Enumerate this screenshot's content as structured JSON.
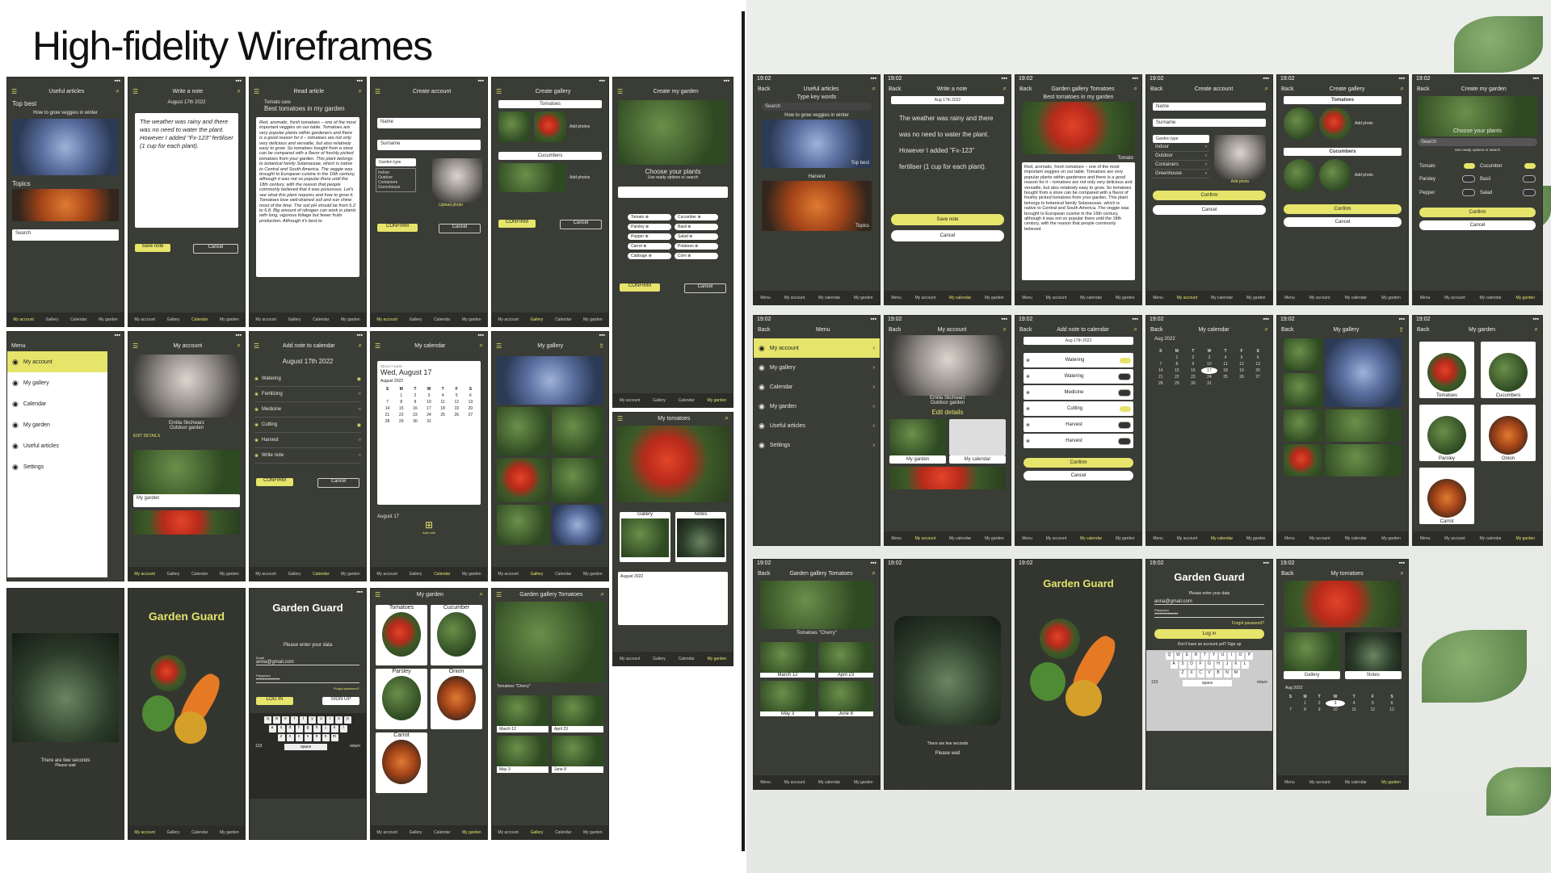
{
  "title": "High-fidelity Wireframes",
  "time": "19:02",
  "back": "Back",
  "nav": {
    "my_account": "My account",
    "gallery": "Gallery",
    "calendar": "Calendar",
    "my_garden": "My garden",
    "menu": "Menu",
    "my_calendar": "My calendar"
  },
  "left": {
    "useful_articles": "Useful articles",
    "top_best": "Top best",
    "how_to": "How to grow veggies in winter",
    "topics": "Topics",
    "search": "Search",
    "write_note": "Write a note",
    "note_date": "August 17th 2022",
    "note_text": "The weather was rainy and there was no need to water the plant. However I added \"Fx-123\" fertiliser (1 cup for each plant).",
    "save_note": "Save note",
    "cancel": "Cancel",
    "read_article": "Read article",
    "tomato_care": "Tomato care",
    "best_tomatoes": "Best tomatoes in my garden",
    "article_text": "Red, aromatic, fresh tomatoes – one of the most important veggies on our table. Tomatoes are very popular plants within gardeners and there is a good reason for it – tomatoes are not only very delicious and versatile, but also relatively easy to grow. So tomatoes bought from a store can be compared with a flavor of freshly picked tomatoes from your garden. This plant belongs to botanical family Solanaceae, which is native to Central and South America. The veggie was brought to European cuisine in the 16th century, although it was not so popular there until the 18th century, with the reason that people commonly believed that it was poisonous. Let's see what this plant requires and how to grow it. Tomatoes love well-drained soil and sun shine most of the time. The soil pH should be from 6.2 to 6.8. Big amount of nitrogen can work in plants with long, vigorous foliage but fewer fruits production. Although it's best to",
    "create_account": "Create account",
    "name": "Name",
    "surname": "Surname",
    "garden_type": "Garden type",
    "indoor": "Indoor",
    "outdoor": "Outdoor",
    "containers": "Containers",
    "greenhouse": "Greenhouse",
    "upload_photo": "Upload photo",
    "confirm": "CONFIRM",
    "cancel_btn": "Cancel",
    "create_gallery": "Create gallery",
    "tomatoes": "Tomatoes",
    "cucumbers": "Cucumbers",
    "add_photos": "Add photos",
    "create_my_garden": "Create my garden",
    "choose_plants": "Choose your plants",
    "use_ready": "Use ready options or search",
    "chips": [
      "Tomato",
      "Cucumber",
      "Parsley",
      "Basil",
      "Pepper",
      "Salad",
      "Carrot",
      "Potatoes",
      "Cabbage",
      "Corn"
    ],
    "menu": "Menu",
    "menu_items": [
      "My account",
      "My gallery",
      "Calendar",
      "My garden",
      "Useful articles",
      "Settings"
    ],
    "my_account": "My account",
    "emilia": "Emilia Skchwarz",
    "outdoor_garden": "Outdoor garden",
    "edit_details": "EDIT DETAILS",
    "my_garden": "My garden",
    "add_note_cal": "Add note to calendar",
    "tasks": [
      "Watering",
      "Fertilizing",
      "Medicine",
      "Cutting",
      "Harvest",
      "Write note"
    ],
    "my_calendar": "My calendar",
    "select_date": "SELECT DATE",
    "wed_aug": "Wed, August 17",
    "august_2022": "August 2022",
    "aug17": "August 17",
    "add_note": "Add note",
    "my_gallery": "My gallery",
    "my_tomatoes": "My tomatoes",
    "gallery": "Gallery",
    "notes": "Notes",
    "few_seconds": "There are few seconds",
    "please_wait": "Please wait",
    "garden_guard": "Garden Guard",
    "enter_data": "Please enter your data",
    "email": "Email",
    "email_val": "anna@gmail.com",
    "password": "Password",
    "password_val": "••••••••••••••",
    "forgot": "Forgot password?",
    "log_in": "LOG IN",
    "sign_up": "SIGN UP",
    "garden_veg": [
      "Tomatoes",
      "Cucumber",
      "Parsley",
      "Onion",
      "Carrot"
    ],
    "gallery_tomatoes": "Garden gallery Tomatoes",
    "cherry": "Tomatoes \"Cherry\"",
    "dates": [
      "March 12",
      "April 23",
      "May 3",
      "June 8"
    ],
    "space": "space",
    "return": "return",
    "num": "123"
  },
  "right": {
    "useful_articles": "Useful articles",
    "type_key": "Type key words",
    "search": "Search",
    "how_to": "How to grow veggies in winter",
    "top_best": "Top best",
    "harvest": "Harvest",
    "topics": "Topics",
    "write_note": "Write a note",
    "note_date": "Aug 17th 2022",
    "note_text": "The weather was rainy and there was no need to water the plant. However I added \"Fx-123\" fertiliser (1 cup for each plant).",
    "save_note": "Save note",
    "cancel": "Cancel",
    "gallery_tomatoes": "Garden gallery Tomatoes",
    "best_tomatoes": "Best tomatoes in my garden",
    "tomato": "Tomato",
    "article_text": "Red, aromatic, fresh tomatoes – one of the most important veggies on our table. Tomatoes are very popular plants within gardeners and there is a good reason for it – tomatoes are not only very delicious and versatile, but also relatively easy to grow. So tomatoes bought from a store can be compared with a flavor of freshly picked tomatoes from your garden. This plant belongs to botanical family Solanaceae, which is native to Central and South America. The veggie was brought to European cuisine in the 16th century, although it was not so popular there until the 18th century, with the reason that people commonly believed",
    "create_account": "Create account",
    "name": "Name",
    "surname": "Surname",
    "garden_type": "Garden type",
    "types": [
      "Indoor",
      "Outdoor",
      "Containers",
      "Greenhouse"
    ],
    "add_photo": "Add photo",
    "confirm": "Confirm",
    "create_gallery": "Create gallery",
    "tomatoes": "Tomatoes",
    "cucumbers": "Cucumbers",
    "add_photo2": "Add photo",
    "create_my_garden": "Create my garden",
    "choose_plants": "Choose your plants",
    "use_ready": "Use ready options or search",
    "toggles": [
      "Tomato",
      "Cucumber",
      "Parsley",
      "Basil",
      "Pepper",
      "Salad"
    ],
    "menu": "Menu",
    "menu_items": [
      "My account",
      "My gallery",
      "Calendar",
      "My garden",
      "Useful articles",
      "Settings"
    ],
    "my_account": "My account",
    "emilia": "Emilia Skchwarz",
    "outdoor_garden": "Outdoor garden",
    "edit_details": "Edit details",
    "my_garden": "My garden",
    "my_calendar": "My calendar",
    "add_note_cal": "Add note to calendar",
    "cal_date": "Aug 17th 2022",
    "tasks": [
      "Watering",
      "Watering",
      "Medicine",
      "Cutting",
      "Harvest",
      "Harvest"
    ],
    "aug_2022": "Aug 2022",
    "weekdays": [
      "S",
      "M",
      "T",
      "W",
      "T",
      "F",
      "S"
    ],
    "my_gallery": "My gallery",
    "veg": [
      "Tomatoes",
      "Cucumbers",
      "Parsley",
      "Onion",
      "Carrot"
    ],
    "cherry": "Tomatoes \"Cherry\"",
    "dates": [
      "March 12",
      "April 23",
      "May 3",
      "June 8"
    ],
    "few_seconds": "There are few seconds",
    "please_wait": "Please wait",
    "garden_guard": "Garden Guard",
    "enter_data": "Please enter your data",
    "email_val": "anna@gmail.com",
    "password": "Password",
    "password_val": "••••••••••••••",
    "forgot": "Forgot password?",
    "log_in": "Log in",
    "no_account": "Don't have an account yet? Sign up",
    "my_tomatoes": "My tomatoes",
    "gallery": "Gallery",
    "notes": "Notes",
    "space": "space",
    "return": "return",
    "num": "123"
  },
  "colors": {
    "accent": "#e6e46a",
    "phone_bg": "#3a3c36",
    "nav_bg": "#2c2d29"
  }
}
